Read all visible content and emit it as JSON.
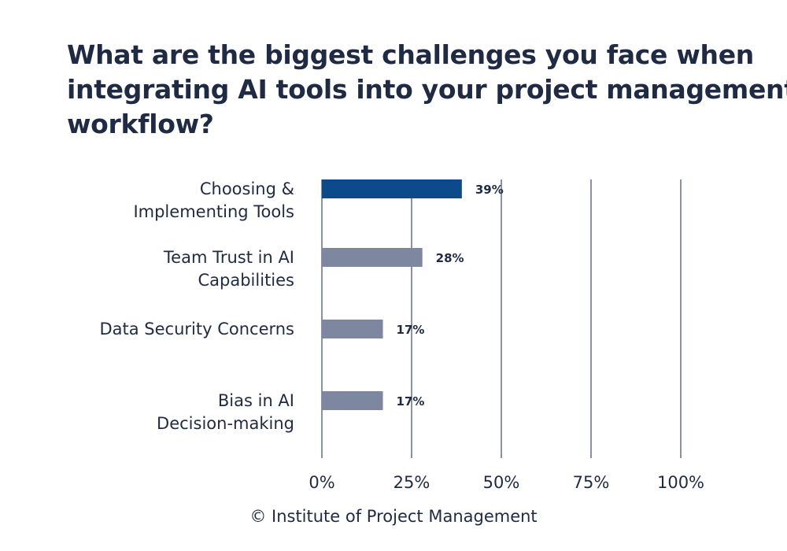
{
  "title_lines": [
    "What are the biggest challenges you face when",
    "integrating AI tools into your project management",
    "workflow?"
  ],
  "footer": "© Institute of Project Management",
  "colors": {
    "highlight": "#0c4a8c",
    "bar": "#7d879f",
    "grid": "#4a5675",
    "text": "#1f2a44"
  },
  "chart_data": {
    "type": "bar",
    "orientation": "horizontal",
    "categories": [
      [
        "Choosing &",
        "Implementing Tools"
      ],
      [
        "Team Trust in AI",
        "Capabilities"
      ],
      [
        "Data Security Concerns"
      ],
      [
        "Bias in AI",
        "Decision-making"
      ]
    ],
    "values": [
      39,
      28,
      17,
      17
    ],
    "value_labels": [
      "39%",
      "28%",
      "17%",
      "17%"
    ],
    "highlight_index": 0,
    "xlim": [
      0,
      100
    ],
    "xticks": [
      0,
      25,
      50,
      75,
      100
    ],
    "xtick_labels": [
      "0%",
      "25%",
      "50%",
      "75%",
      "100%"
    ],
    "grid": true,
    "legend": false
  }
}
